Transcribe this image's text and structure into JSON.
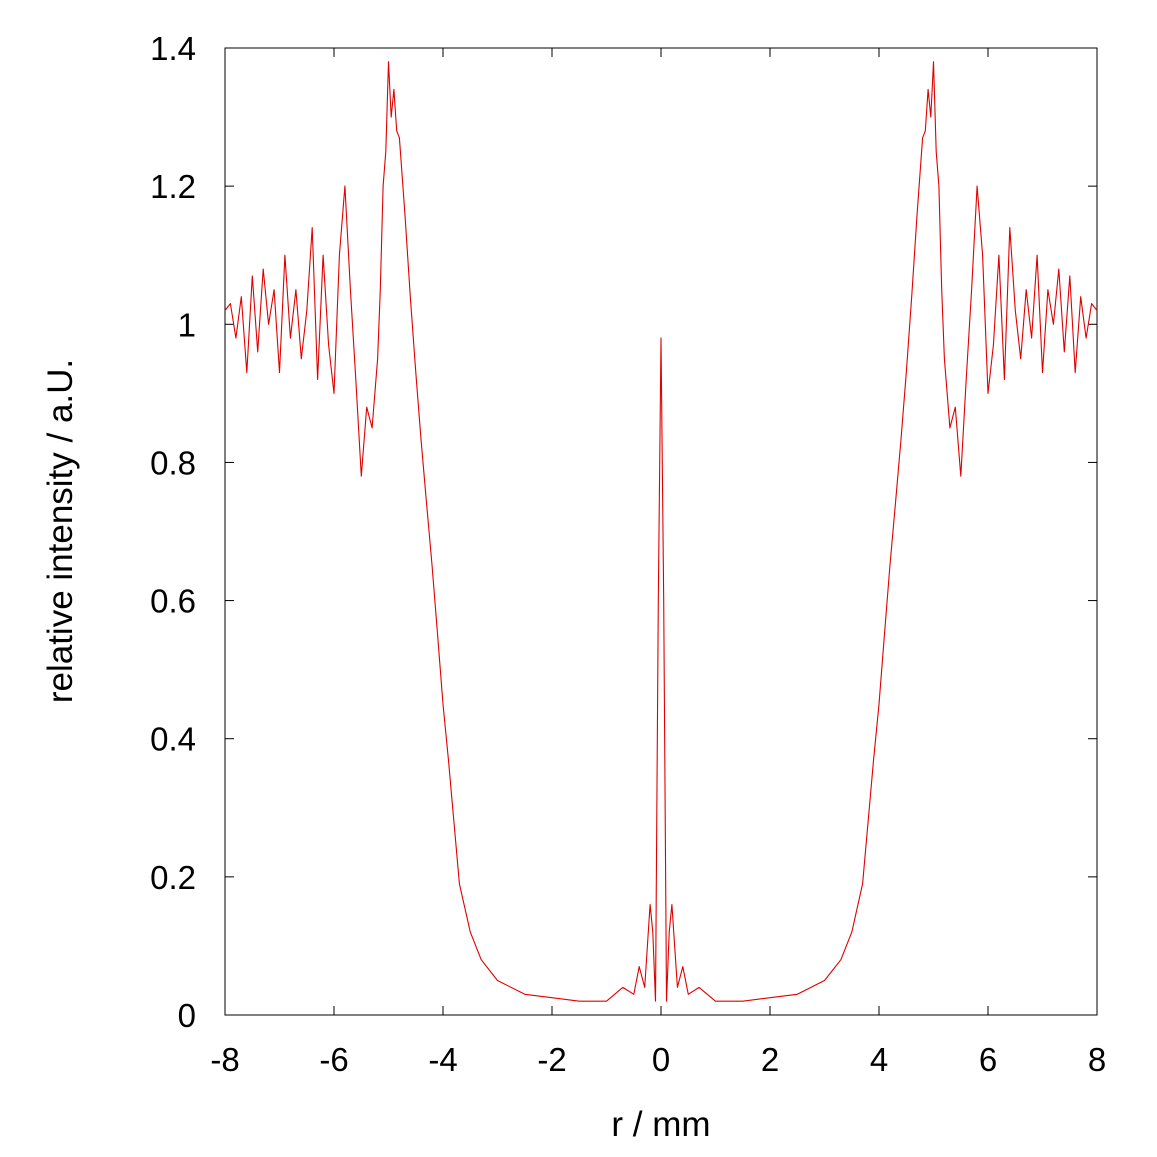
{
  "chart_data": {
    "type": "line",
    "title": "",
    "xlabel": "r / mm",
    "ylabel": "relative intensity / a.U.",
    "xlim": [
      -8,
      8
    ],
    "ylim": [
      0,
      1.4
    ],
    "xticks": [
      -8,
      -6,
      -4,
      -2,
      0,
      2,
      4,
      6,
      8
    ],
    "xtick_labels": [
      "-8",
      "-6",
      "-4",
      "-2",
      "0",
      "2",
      "4",
      "6",
      "8"
    ],
    "yticks": [
      0,
      0.2,
      0.4,
      0.6,
      0.8,
      1.0,
      1.2,
      1.4
    ],
    "ytick_labels": [
      "0",
      "0.2",
      "0.4",
      "0.6",
      "0.8",
      "1",
      "1.2",
      "1.4"
    ],
    "grid": false,
    "legend": "none",
    "series": [
      {
        "color": "#e00000",
        "symmetric_about_zero": true,
        "x": [
          0,
          0.05,
          0.1,
          0.15,
          0.2,
          0.3,
          0.4,
          0.5,
          0.7,
          1.0,
          1.5,
          2.0,
          2.5,
          3.0,
          3.3,
          3.5,
          3.7,
          3.8,
          3.9,
          4.0,
          4.1,
          4.2,
          4.3,
          4.4,
          4.5,
          4.6,
          4.7,
          4.8,
          4.85,
          4.9,
          4.95,
          5.0,
          5.05,
          5.1,
          5.15,
          5.2,
          5.3,
          5.4,
          5.5,
          5.6,
          5.7,
          5.8,
          5.9,
          6.0,
          6.1,
          6.2,
          6.3,
          6.4,
          6.5,
          6.6,
          6.7,
          6.8,
          6.9,
          7.0,
          7.1,
          7.2,
          7.3,
          7.4,
          7.5,
          7.6,
          7.7,
          7.8,
          7.9,
          8.0
        ],
        "y": [
          0.98,
          0.6,
          0.02,
          0.12,
          0.16,
          0.04,
          0.07,
          0.03,
          0.04,
          0.02,
          0.02,
          0.025,
          0.03,
          0.05,
          0.08,
          0.12,
          0.19,
          0.28,
          0.37,
          0.45,
          0.55,
          0.65,
          0.74,
          0.83,
          0.93,
          1.04,
          1.16,
          1.27,
          1.28,
          1.34,
          1.3,
          1.38,
          1.25,
          1.2,
          1.05,
          0.95,
          0.85,
          0.88,
          0.78,
          0.92,
          1.05,
          1.2,
          1.1,
          0.9,
          0.97,
          1.1,
          0.92,
          1.14,
          1.02,
          0.95,
          1.05,
          0.98,
          1.1,
          0.93,
          1.05,
          1.0,
          1.08,
          0.96,
          1.07,
          0.93,
          1.04,
          0.98,
          1.03,
          1.02
        ]
      }
    ]
  }
}
